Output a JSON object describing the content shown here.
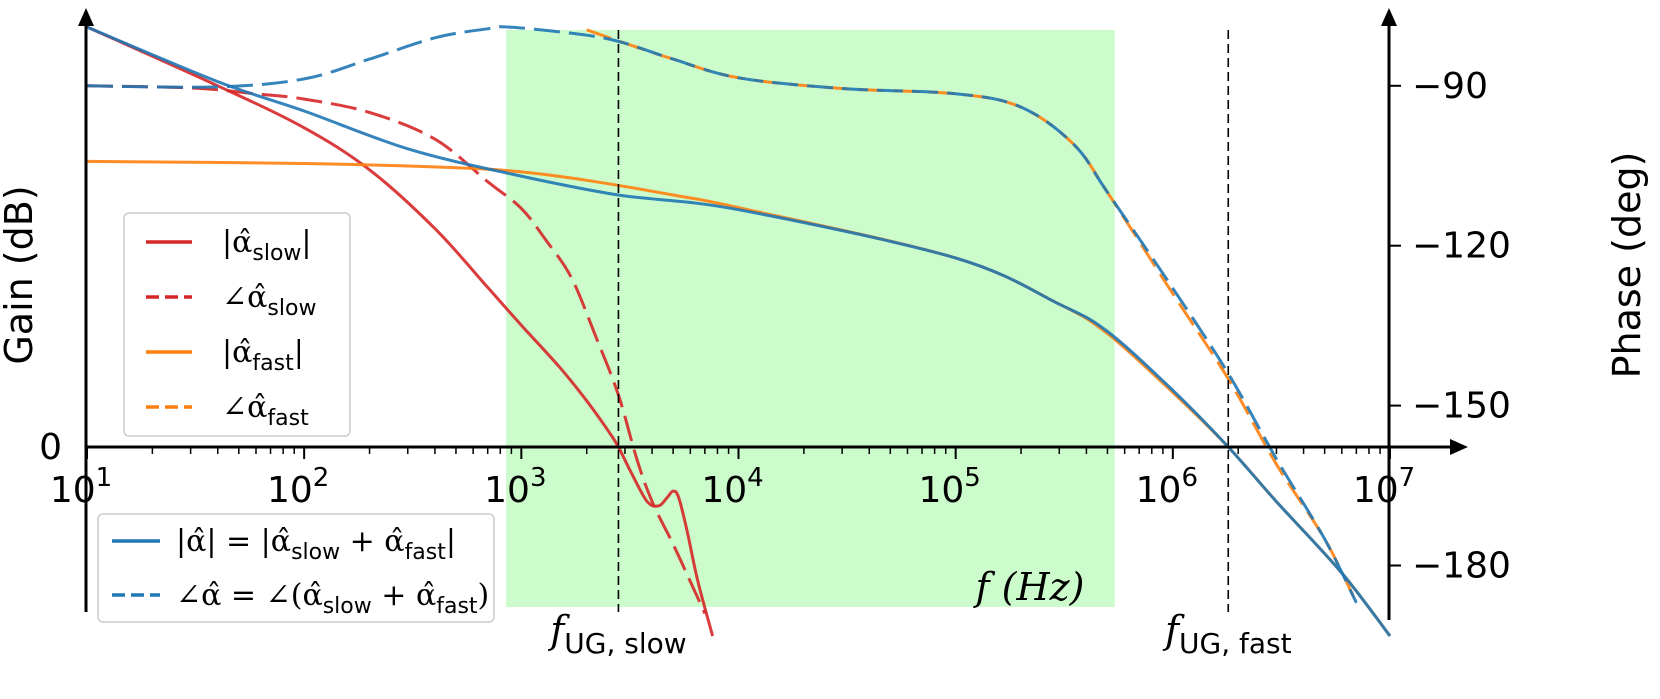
{
  "chart_data": {
    "type": "line",
    "title": "",
    "xlabel": "f (Hz)",
    "ylabel_left": "Gain (dB)",
    "ylabel_right": "Phase (deg)",
    "x_scale": "log",
    "xlim": [
      10,
      10000000
    ],
    "x_ticks": [
      {
        "base": "10",
        "exp": "1",
        "value": 10
      },
      {
        "base": "10",
        "exp": "2",
        "value": 100
      },
      {
        "base": "10",
        "exp": "3",
        "value": 1000
      },
      {
        "base": "10",
        "exp": "4",
        "value": 10000
      },
      {
        "base": "10",
        "exp": "5",
        "value": 100000
      },
      {
        "base": "10",
        "exp": "6",
        "value": 1000000
      },
      {
        "base": "10",
        "exp": "7",
        "value": 10000000
      }
    ],
    "left_axis": {
      "ticks": [
        {
          "label": "0",
          "value": 0
        }
      ]
    },
    "right_axis": {
      "ylim": [
        -190,
        -78
      ],
      "ticks": [
        {
          "label": "−90",
          "value": -90
        },
        {
          "label": "−120",
          "value": -120
        },
        {
          "label": "−150",
          "value": -150
        },
        {
          "label": "−180",
          "value": -180
        }
      ]
    },
    "colors": {
      "slow": "#d62728",
      "fast": "#ff7f0e",
      "total": "#1f77b4",
      "band": "#ccfccc"
    },
    "shaded_band": {
      "x_start": 850,
      "x_end": 540000,
      "color": "#ccfccc"
    },
    "vlines": [
      {
        "x": 2800,
        "label_main": "f",
        "label_sub": "UG, slow"
      },
      {
        "x": 1800000,
        "label_main": "f",
        "label_sub": "UG, fast"
      }
    ],
    "legend_1": {
      "placement": "middle-left",
      "entries": [
        {
          "main": "|α̂",
          "sub": "slow",
          "tail": "|",
          "style": "solid",
          "color": "#d62728"
        },
        {
          "main": "∠α̂",
          "sub": "slow",
          "tail": "",
          "style": "dashed",
          "color": "#d62728"
        },
        {
          "main": "|α̂",
          "sub": "fast",
          "tail": "|",
          "style": "solid",
          "color": "#ff7f0e"
        },
        {
          "main": "∠α̂",
          "sub": "fast",
          "tail": "",
          "style": "dashed",
          "color": "#ff7f0e"
        }
      ]
    },
    "legend_2": {
      "placement": "bottom-left",
      "entries": [
        {
          "parts": [
            {
              "t": "|α̂| = |α̂"
            },
            {
              "t": "slow",
              "sub": true
            },
            {
              "t": " + α̂"
            },
            {
              "t": "fast",
              "sub": true
            },
            {
              "t": "|"
            }
          ],
          "style": "solid",
          "color": "#1f77b4"
        },
        {
          "parts": [
            {
              "t": "∠α̂ = ∠(α̂"
            },
            {
              "t": "slow",
              "sub": true
            },
            {
              "t": " + α̂"
            },
            {
              "t": "fast",
              "sub": true
            },
            {
              "t": ")"
            }
          ],
          "style": "dashed",
          "color": "#1f77b4"
        }
      ]
    },
    "series": [
      {
        "name": "|α̂slow|",
        "axis": "gain",
        "style": "solid",
        "color": "#d62728",
        "points": [
          [
            10,
            1.0
          ],
          [
            40,
            0.86
          ],
          [
            100,
            0.76
          ],
          [
            200,
            0.66
          ],
          [
            400,
            0.52
          ],
          [
            700,
            0.38
          ],
          [
            1000,
            0.29
          ],
          [
            1500,
            0.19
          ],
          [
            2000,
            0.11
          ],
          [
            2500,
            0.04
          ],
          [
            2800,
            0.0
          ],
          [
            3200,
            -0.06
          ],
          [
            3800,
            -0.13
          ],
          [
            4300,
            -0.14
          ],
          [
            4700,
            -0.12
          ],
          [
            5000,
            -0.105
          ],
          [
            5300,
            -0.12
          ],
          [
            5800,
            -0.2
          ],
          [
            6500,
            -0.32
          ],
          [
            7600,
            -0.45
          ]
        ]
      },
      {
        "name": "∠α̂slow",
        "axis": "phase",
        "style": "dashed",
        "color": "#d62728",
        "points": [
          [
            10,
            -90.0
          ],
          [
            30,
            -90.4
          ],
          [
            60,
            -91.5
          ],
          [
            100,
            -92.5
          ],
          [
            200,
            -95
          ],
          [
            400,
            -100
          ],
          [
            700,
            -108
          ],
          [
            1000,
            -113
          ],
          [
            1300,
            -119
          ],
          [
            1700,
            -126
          ],
          [
            2200,
            -137
          ],
          [
            2800,
            -148
          ],
          [
            3400,
            -160
          ],
          [
            4000,
            -168
          ],
          [
            5000,
            -176
          ],
          [
            6000,
            -183
          ],
          [
            7000,
            -189
          ]
        ]
      },
      {
        "name": "|α̂fast|",
        "axis": "gain",
        "style": "solid",
        "color": "#ff7f0e",
        "points": [
          [
            10,
            0.68
          ],
          [
            100,
            0.675
          ],
          [
            500,
            0.665
          ],
          [
            1000,
            0.655
          ],
          [
            2000,
            0.635
          ],
          [
            5000,
            0.6
          ],
          [
            10000,
            0.57
          ],
          [
            100000,
            0.45
          ],
          [
            300000,
            0.34
          ],
          [
            500000,
            0.27
          ],
          [
            1000000,
            0.13
          ],
          [
            1800000,
            0.0
          ],
          [
            3000000,
            -0.13
          ],
          [
            6000000,
            -0.3
          ],
          [
            10000000,
            -0.45
          ]
        ]
      },
      {
        "name": "∠α̂fast",
        "axis": "phase",
        "style": "dashed",
        "color": "#ff7f0e",
        "points": [
          [
            2000,
            -79.5
          ],
          [
            3000,
            -82
          ],
          [
            5000,
            -85
          ],
          [
            10000,
            -88.5
          ],
          [
            30000,
            -90.5
          ],
          [
            100000,
            -91.5
          ],
          [
            200000,
            -94
          ],
          [
            350000,
            -101
          ],
          [
            500000,
            -110
          ],
          [
            1000000,
            -129
          ],
          [
            1800000,
            -145
          ],
          [
            3000000,
            -161
          ],
          [
            5000000,
            -175
          ],
          [
            7000000,
            -187
          ]
        ]
      },
      {
        "name": "|α̂|",
        "axis": "gain",
        "style": "solid",
        "color": "#1f77b4",
        "points": [
          [
            10,
            1.0
          ],
          [
            40,
            0.87
          ],
          [
            100,
            0.8
          ],
          [
            300,
            0.71
          ],
          [
            900,
            0.65
          ],
          [
            2800,
            0.6
          ],
          [
            10000,
            0.565
          ],
          [
            100000,
            0.45
          ],
          [
            300000,
            0.34
          ],
          [
            500000,
            0.275
          ],
          [
            1000000,
            0.135
          ],
          [
            1800000,
            0.0
          ],
          [
            3000000,
            -0.13
          ],
          [
            6000000,
            -0.3
          ],
          [
            10000000,
            -0.45
          ]
        ]
      },
      {
        "name": "∠α̂",
        "axis": "phase",
        "style": "dashed",
        "color": "#1f77b4",
        "points": [
          [
            10,
            -90.0
          ],
          [
            40,
            -90.2
          ],
          [
            100,
            -88.7
          ],
          [
            200,
            -85
          ],
          [
            400,
            -81
          ],
          [
            700,
            -79.3
          ],
          [
            900,
            -79.0
          ],
          [
            2000,
            -80.5
          ],
          [
            3000,
            -82
          ],
          [
            5000,
            -85
          ],
          [
            10000,
            -88.5
          ],
          [
            30000,
            -90.5
          ],
          [
            100000,
            -91.5
          ],
          [
            200000,
            -94
          ],
          [
            350000,
            -101
          ],
          [
            500000,
            -110
          ],
          [
            1000000,
            -128
          ],
          [
            1800000,
            -144
          ],
          [
            3000000,
            -160
          ],
          [
            5000000,
            -175
          ],
          [
            7000000,
            -187
          ]
        ]
      }
    ]
  }
}
